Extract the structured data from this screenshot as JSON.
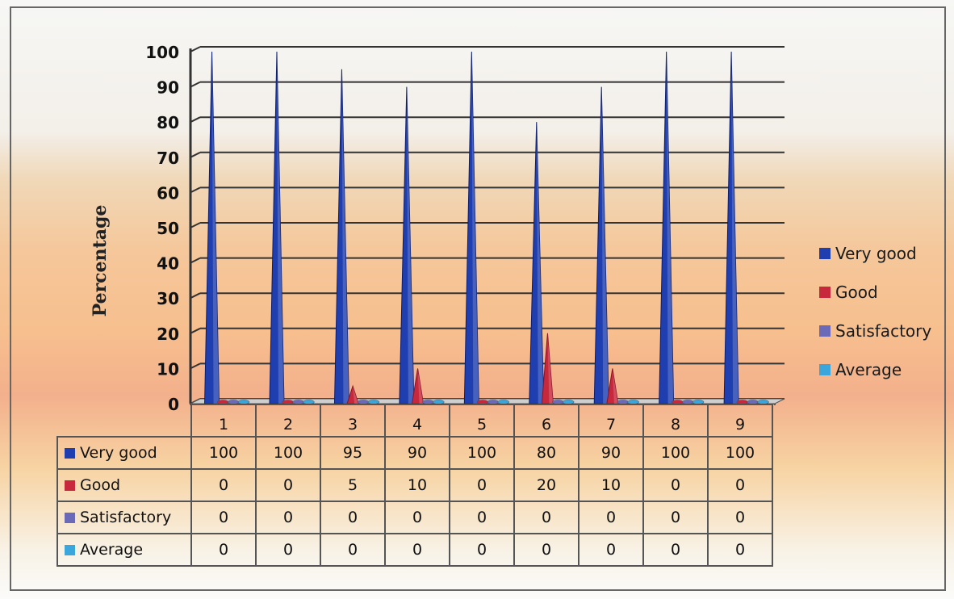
{
  "chart_data": {
    "type": "bar",
    "categories": [
      "1",
      "2",
      "3",
      "4",
      "5",
      "6",
      "7",
      "8",
      "9"
    ],
    "series": [
      {
        "name": "Very good",
        "values": [
          100,
          100,
          95,
          90,
          100,
          80,
          90,
          100,
          100
        ],
        "color": "#1f3fb0"
      },
      {
        "name": "Good",
        "values": [
          0,
          0,
          5,
          10,
          0,
          20,
          10,
          0,
          0
        ],
        "color": "#c8283c"
      },
      {
        "name": "Satisfactory",
        "values": [
          0,
          0,
          0,
          0,
          0,
          0,
          0,
          0,
          0
        ],
        "color": "#6a6ab8"
      },
      {
        "name": "Average",
        "values": [
          0,
          0,
          0,
          0,
          0,
          0,
          0,
          0,
          0
        ],
        "color": "#3aa6dc"
      }
    ],
    "ylabel": "Percentage",
    "ylim": [
      0,
      100
    ],
    "yticks": [
      0,
      10,
      20,
      30,
      40,
      50,
      60,
      70,
      80,
      90,
      100
    ],
    "grid": true,
    "legend_position": "right",
    "data_table": true
  }
}
